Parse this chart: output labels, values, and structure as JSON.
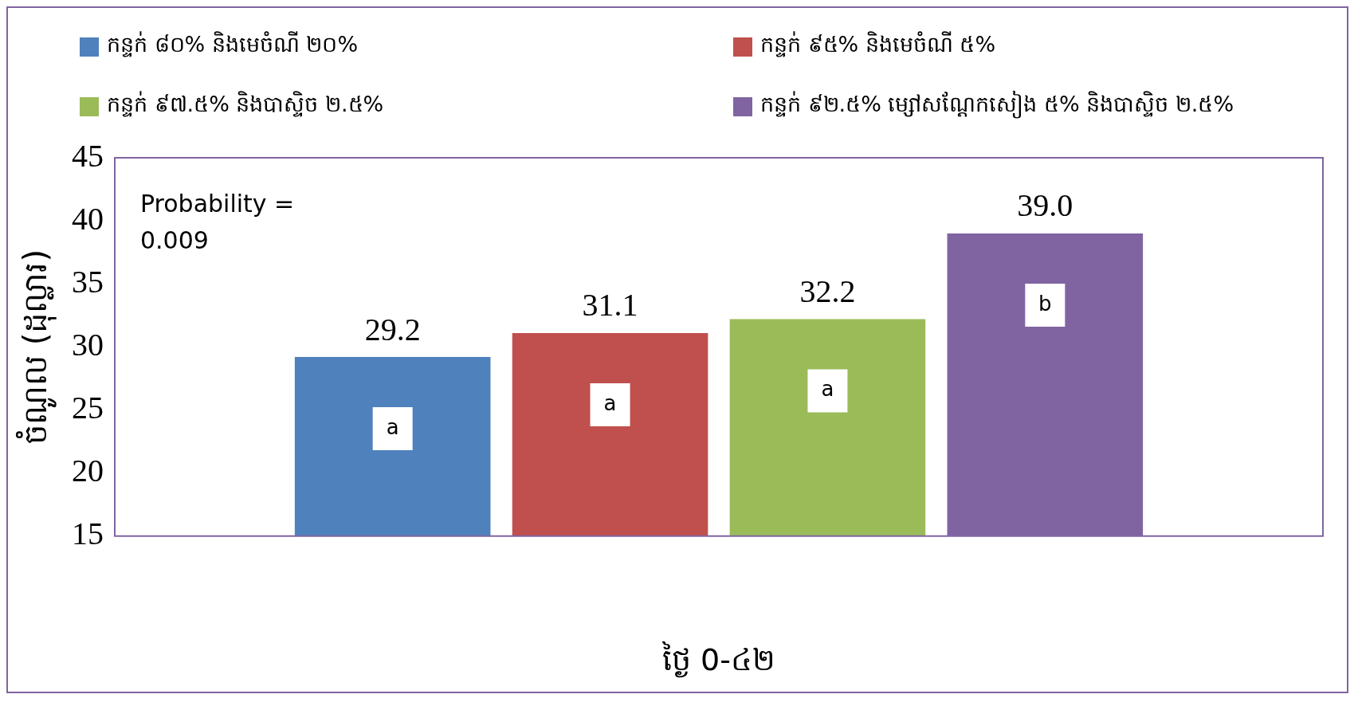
{
  "chart_data": {
    "type": "bar",
    "ylabel": "ចំណូល (ដុល្លារ)",
    "xlabel": "ថ្ងៃ 0-៤២",
    "categories": [
      null
    ],
    "series": [
      {
        "name": "កន្ទក់ ៨០% និងមេចំណី ២០%",
        "color": "#4f81bd",
        "values": [
          29.2
        ],
        "value_labels": [
          "29.2"
        ]
      },
      {
        "name": "កន្ទក់ ៩៥% និងមេចំណី ៥%",
        "color": "#c0504d",
        "values": [
          31.1
        ],
        "value_labels": [
          "31.1"
        ]
      },
      {
        "name": "កន្ទក់ ៩៧.៥% និងបាស្ទិច ២.៥%",
        "color": "#9bbb59",
        "values": [
          32.2
        ],
        "value_labels": [
          "32.2"
        ]
      },
      {
        "name": "កន្ទក់ ៩២.៥% ម្សៅសណ្ដែកសៀង ៥% និងបាស្ទិច ២.៥%",
        "color": "#8064a2",
        "values": [
          39.0
        ],
        "value_labels": [
          "39.0"
        ]
      }
    ],
    "ylim": [
      15,
      45
    ],
    "yticks": [
      15,
      20,
      25,
      30,
      35,
      40,
      45
    ],
    "grid": false,
    "legend": "top",
    "annotations": [
      "Probability = 0.009",
      "a",
      "a",
      "a",
      "b"
    ]
  }
}
